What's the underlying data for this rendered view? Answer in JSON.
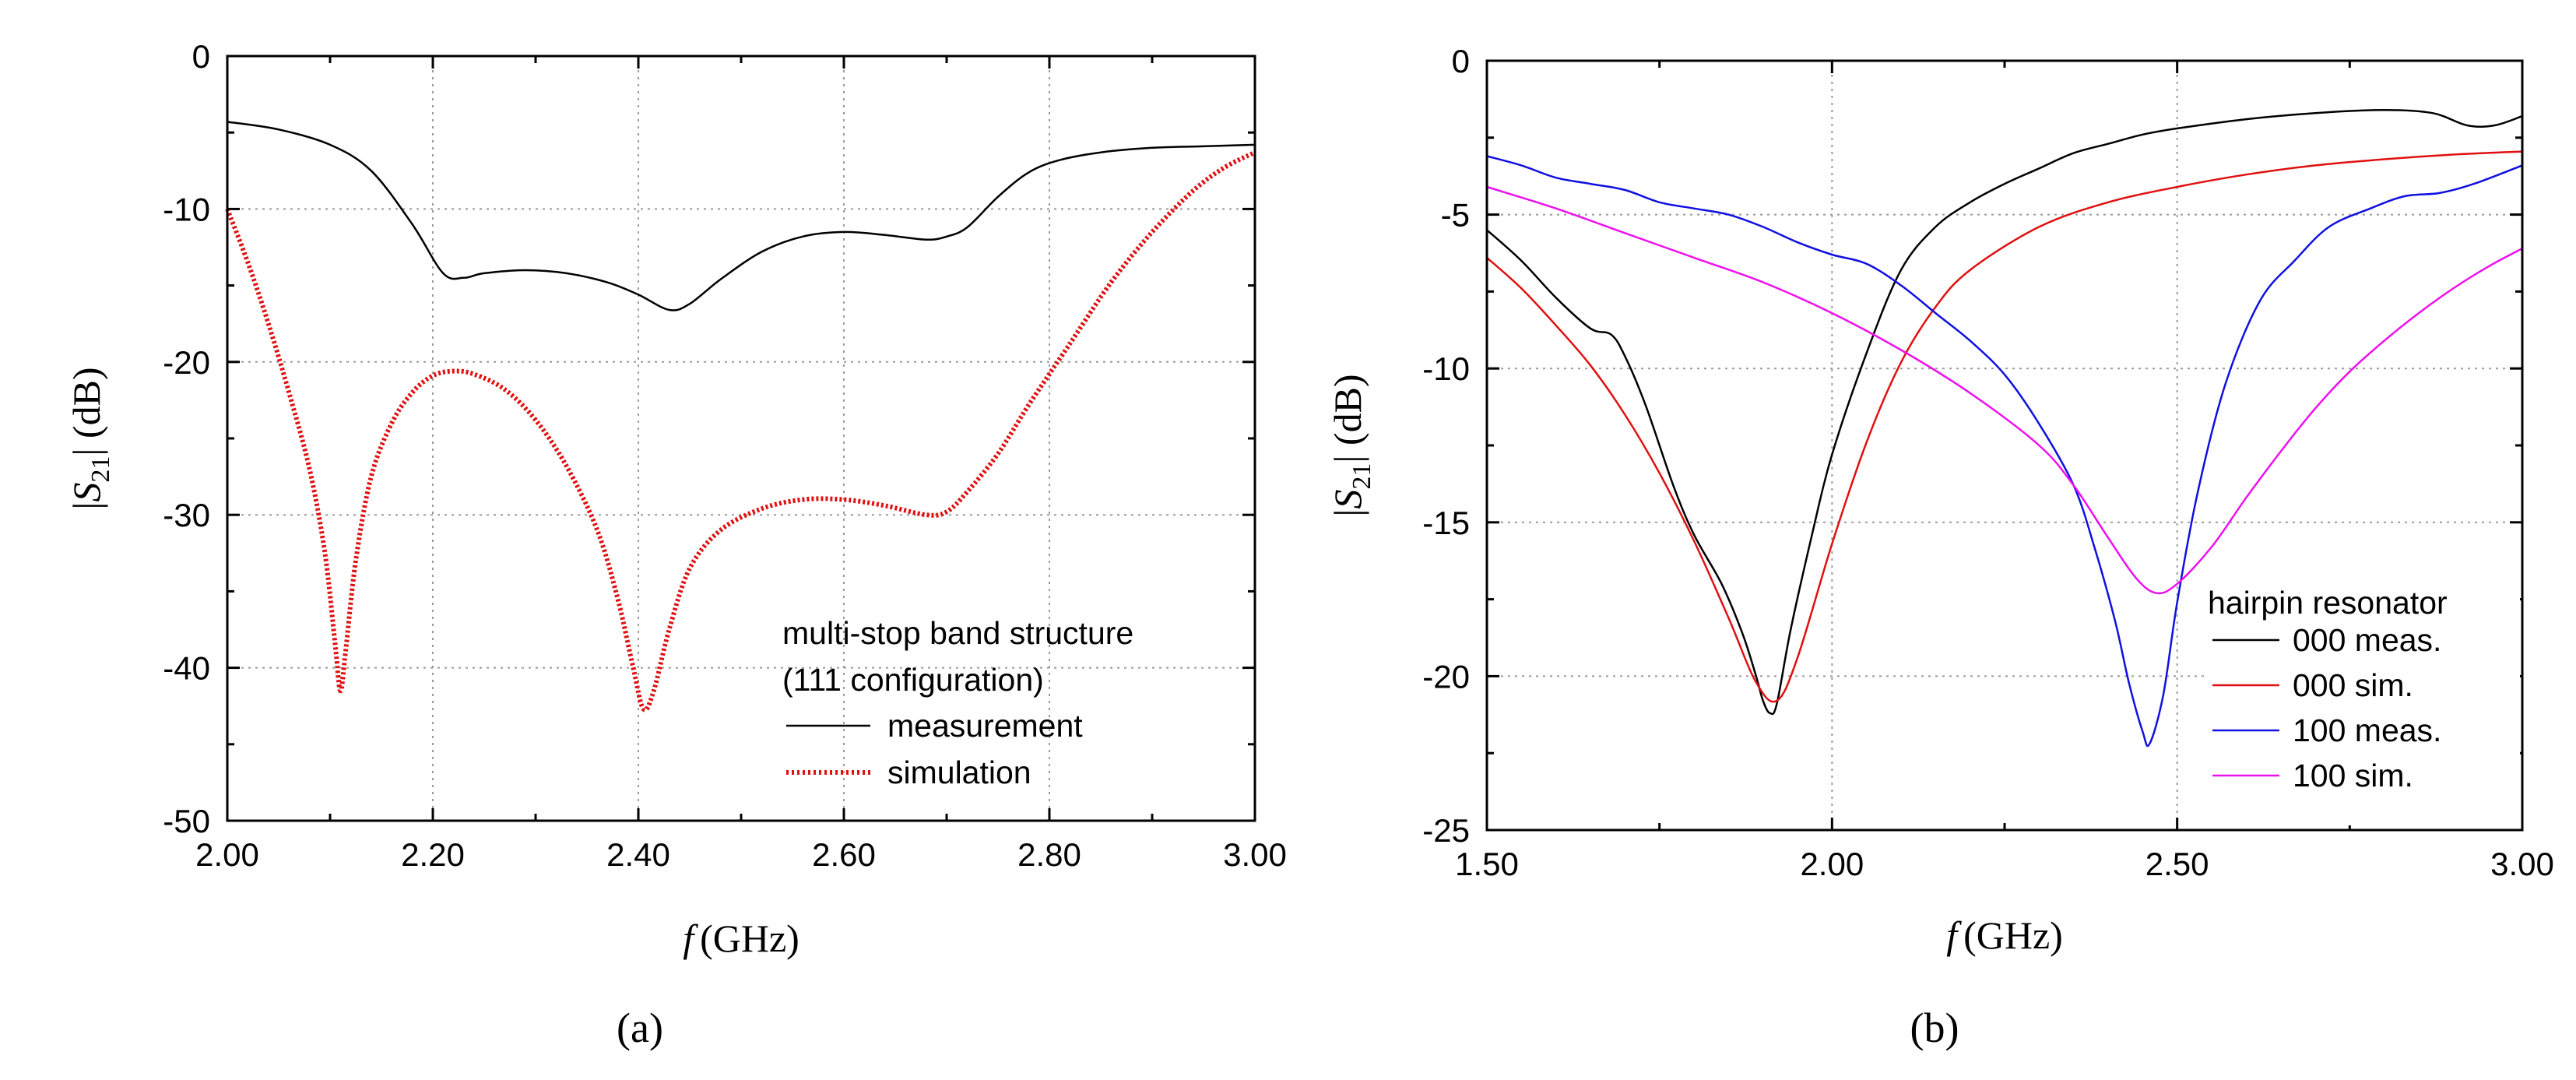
{
  "chart_data": [
    {
      "type": "line",
      "panel": "(a)",
      "xlabel_symbol": "f",
      "xlabel_unit": "(GHz)",
      "ylabel_pre": "|",
      "ylabel_symbol": "S",
      "ylabel_sub": "21",
      "ylabel_post": "| (dB)",
      "xlim": [
        2.0,
        3.0
      ],
      "ylim": [
        -50,
        0
      ],
      "xticks": [
        2.0,
        2.2,
        2.4,
        2.6,
        2.8,
        3.0
      ],
      "xtick_labels": [
        "2.00",
        "2.20",
        "2.40",
        "2.60",
        "2.80",
        "3.00"
      ],
      "yticks": [
        0,
        -10,
        -20,
        -30,
        -40,
        -50
      ],
      "ytick_labels": [
        "0",
        "-10",
        "-20",
        "-30",
        "-40",
        "-50"
      ],
      "legend_title": [
        "multi-stop band structure",
        "(111 configuration)"
      ],
      "legend_position": "bottom-right",
      "series": [
        {
          "name": "measurement",
          "color": "#000000",
          "style": "solid",
          "points": [
            [
              2.0,
              -4.3
            ],
            [
              2.05,
              -4.8
            ],
            [
              2.1,
              -5.8
            ],
            [
              2.14,
              -7.5
            ],
            [
              2.18,
              -11
            ],
            [
              2.21,
              -14.2
            ],
            [
              2.23,
              -14.5
            ],
            [
              2.25,
              -14.2
            ],
            [
              2.29,
              -14
            ],
            [
              2.33,
              -14.2
            ],
            [
              2.37,
              -14.8
            ],
            [
              2.4,
              -15.6
            ],
            [
              2.43,
              -16.6
            ],
            [
              2.45,
              -16.2
            ],
            [
              2.48,
              -14.6
            ],
            [
              2.52,
              -12.8
            ],
            [
              2.56,
              -11.8
            ],
            [
              2.6,
              -11.5
            ],
            [
              2.64,
              -11.7
            ],
            [
              2.68,
              -12
            ],
            [
              2.7,
              -11.8
            ],
            [
              2.72,
              -11.2
            ],
            [
              2.75,
              -9.2
            ],
            [
              2.78,
              -7.6
            ],
            [
              2.81,
              -6.8
            ],
            [
              2.85,
              -6.3
            ],
            [
              2.9,
              -6
            ],
            [
              2.95,
              -5.9
            ],
            [
              3.0,
              -5.8
            ]
          ]
        },
        {
          "name": "simulation",
          "color": "#e01010",
          "style": "dotted",
          "points": [
            [
              2.0,
              -10
            ],
            [
              2.02,
              -13.5
            ],
            [
              2.04,
              -17.5
            ],
            [
              2.06,
              -22
            ],
            [
              2.08,
              -27
            ],
            [
              2.095,
              -32.5
            ],
            [
              2.105,
              -38.5
            ],
            [
              2.11,
              -41.5
            ],
            [
              2.115,
              -39
            ],
            [
              2.125,
              -33
            ],
            [
              2.14,
              -27.5
            ],
            [
              2.16,
              -24
            ],
            [
              2.18,
              -22
            ],
            [
              2.2,
              -20.9
            ],
            [
              2.22,
              -20.6
            ],
            [
              2.24,
              -20.8
            ],
            [
              2.27,
              -21.8
            ],
            [
              2.3,
              -23.8
            ],
            [
              2.33,
              -26.8
            ],
            [
              2.36,
              -31
            ],
            [
              2.38,
              -35.5
            ],
            [
              2.395,
              -40
            ],
            [
              2.405,
              -42.7
            ],
            [
              2.415,
              -41.5
            ],
            [
              2.43,
              -37.5
            ],
            [
              2.45,
              -33.5
            ],
            [
              2.48,
              -31
            ],
            [
              2.52,
              -29.6
            ],
            [
              2.56,
              -29
            ],
            [
              2.6,
              -29
            ],
            [
              2.64,
              -29.4
            ],
            [
              2.68,
              -30
            ],
            [
              2.7,
              -29.8
            ],
            [
              2.72,
              -28.5
            ],
            [
              2.75,
              -26
            ],
            [
              2.78,
              -22.8
            ],
            [
              2.82,
              -18.8
            ],
            [
              2.86,
              -14.8
            ],
            [
              2.9,
              -11.5
            ],
            [
              2.94,
              -8.8
            ],
            [
              2.97,
              -7.3
            ],
            [
              3.0,
              -6.3
            ]
          ]
        }
      ]
    },
    {
      "type": "line",
      "panel": "(b)",
      "xlabel_symbol": "f",
      "xlabel_unit": "(GHz)",
      "ylabel_pre": "|",
      "ylabel_symbol": "S",
      "ylabel_sub": "21",
      "ylabel_post": "| (dB)",
      "xlim": [
        1.5,
        3.0
      ],
      "ylim": [
        -25,
        0
      ],
      "xticks": [
        1.5,
        2.0,
        2.5,
        3.0
      ],
      "xtick_labels": [
        "1.50",
        "2.00",
        "2.50",
        "3.00"
      ],
      "yticks": [
        0,
        -5,
        -10,
        -15,
        -20,
        -25
      ],
      "ytick_labels": [
        "0",
        "-5",
        "-10",
        "-15",
        "-20",
        "-25"
      ],
      "legend_title": [
        "hairpin resonator"
      ],
      "legend_position": "bottom-right",
      "series": [
        {
          "name": "000 meas.",
          "color": "#000000",
          "style": "solid",
          "points": [
            [
              1.5,
              -5.5
            ],
            [
              1.55,
              -6.5
            ],
            [
              1.6,
              -7.7
            ],
            [
              1.65,
              -8.7
            ],
            [
              1.68,
              -8.9
            ],
            [
              1.7,
              -9.6
            ],
            [
              1.73,
              -11.2
            ],
            [
              1.77,
              -13.8
            ],
            [
              1.8,
              -15.4
            ],
            [
              1.84,
              -17
            ],
            [
              1.87,
              -18.6
            ],
            [
              1.89,
              -20
            ],
            [
              1.9,
              -20.8
            ],
            [
              1.91,
              -21.2
            ],
            [
              1.92,
              -20.9
            ],
            [
              1.94,
              -18.5
            ],
            [
              1.97,
              -15.5
            ],
            [
              2.0,
              -12.8
            ],
            [
              2.05,
              -9.5
            ],
            [
              2.1,
              -6.8
            ],
            [
              2.15,
              -5.4
            ],
            [
              2.2,
              -4.6
            ],
            [
              2.25,
              -4
            ],
            [
              2.3,
              -3.5
            ],
            [
              2.35,
              -3
            ],
            [
              2.4,
              -2.7
            ],
            [
              2.45,
              -2.4
            ],
            [
              2.5,
              -2.2
            ],
            [
              2.6,
              -1.9
            ],
            [
              2.7,
              -1.7
            ],
            [
              2.8,
              -1.6
            ],
            [
              2.87,
              -1.7
            ],
            [
              2.92,
              -2.1
            ],
            [
              2.96,
              -2.1
            ],
            [
              3.0,
              -1.8
            ]
          ]
        },
        {
          "name": "000 sim.",
          "color": "#e01010",
          "style": "solid",
          "points": [
            [
              1.5,
              -6.4
            ],
            [
              1.55,
              -7.4
            ],
            [
              1.6,
              -8.6
            ],
            [
              1.65,
              -9.9
            ],
            [
              1.7,
              -11.5
            ],
            [
              1.75,
              -13.4
            ],
            [
              1.8,
              -15.6
            ],
            [
              1.85,
              -18.1
            ],
            [
              1.89,
              -20.2
            ],
            [
              1.92,
              -20.8
            ],
            [
              1.95,
              -19.4
            ],
            [
              2.0,
              -15.7
            ],
            [
              2.05,
              -12.4
            ],
            [
              2.1,
              -9.8
            ],
            [
              2.15,
              -8
            ],
            [
              2.2,
              -6.8
            ],
            [
              2.3,
              -5.4
            ],
            [
              2.4,
              -4.6
            ],
            [
              2.5,
              -4.1
            ],
            [
              2.6,
              -3.7
            ],
            [
              2.7,
              -3.4
            ],
            [
              2.8,
              -3.2
            ],
            [
              2.9,
              -3.05
            ],
            [
              3.0,
              -2.95
            ]
          ]
        },
        {
          "name": "100 meas.",
          "color": "#1010e0",
          "style": "solid",
          "points": [
            [
              1.5,
              -3.1
            ],
            [
              1.55,
              -3.4
            ],
            [
              1.6,
              -3.8
            ],
            [
              1.65,
              -4
            ],
            [
              1.7,
              -4.2
            ],
            [
              1.75,
              -4.6
            ],
            [
              1.8,
              -4.8
            ],
            [
              1.85,
              -5
            ],
            [
              1.9,
              -5.4
            ],
            [
              1.95,
              -5.9
            ],
            [
              2.0,
              -6.3
            ],
            [
              2.05,
              -6.6
            ],
            [
              2.1,
              -7.3
            ],
            [
              2.15,
              -8.2
            ],
            [
              2.2,
              -9.1
            ],
            [
              2.25,
              -10.2
            ],
            [
              2.3,
              -11.8
            ],
            [
              2.35,
              -13.8
            ],
            [
              2.38,
              -15.8
            ],
            [
              2.41,
              -18.2
            ],
            [
              2.43,
              -20.2
            ],
            [
              2.45,
              -21.8
            ],
            [
              2.46,
              -22.2
            ],
            [
              2.48,
              -20.6
            ],
            [
              2.5,
              -17.6
            ],
            [
              2.53,
              -14
            ],
            [
              2.57,
              -10.5
            ],
            [
              2.62,
              -7.8
            ],
            [
              2.67,
              -6.5
            ],
            [
              2.72,
              -5.4
            ],
            [
              2.78,
              -4.8
            ],
            [
              2.83,
              -4.4
            ],
            [
              2.88,
              -4.3
            ],
            [
              2.93,
              -4
            ],
            [
              3.0,
              -3.4
            ]
          ]
        },
        {
          "name": "100 sim.",
          "color": "#ee10ee",
          "style": "solid",
          "points": [
            [
              1.5,
              -4.1
            ],
            [
              1.6,
              -4.8
            ],
            [
              1.7,
              -5.6
            ],
            [
              1.8,
              -6.4
            ],
            [
              1.9,
              -7.2
            ],
            [
              2.0,
              -8.2
            ],
            [
              2.1,
              -9.4
            ],
            [
              2.2,
              -10.8
            ],
            [
              2.3,
              -12.5
            ],
            [
              2.35,
              -13.8
            ],
            [
              2.4,
              -15.5
            ],
            [
              2.44,
              -16.8
            ],
            [
              2.47,
              -17.3
            ],
            [
              2.5,
              -17
            ],
            [
              2.55,
              -15.8
            ],
            [
              2.6,
              -14.2
            ],
            [
              2.65,
              -12.7
            ],
            [
              2.7,
              -11.3
            ],
            [
              2.75,
              -10.1
            ],
            [
              2.8,
              -9.1
            ],
            [
              2.85,
              -8.2
            ],
            [
              2.9,
              -7.4
            ],
            [
              2.95,
              -6.7
            ],
            [
              3.0,
              -6.1
            ]
          ]
        }
      ]
    }
  ]
}
